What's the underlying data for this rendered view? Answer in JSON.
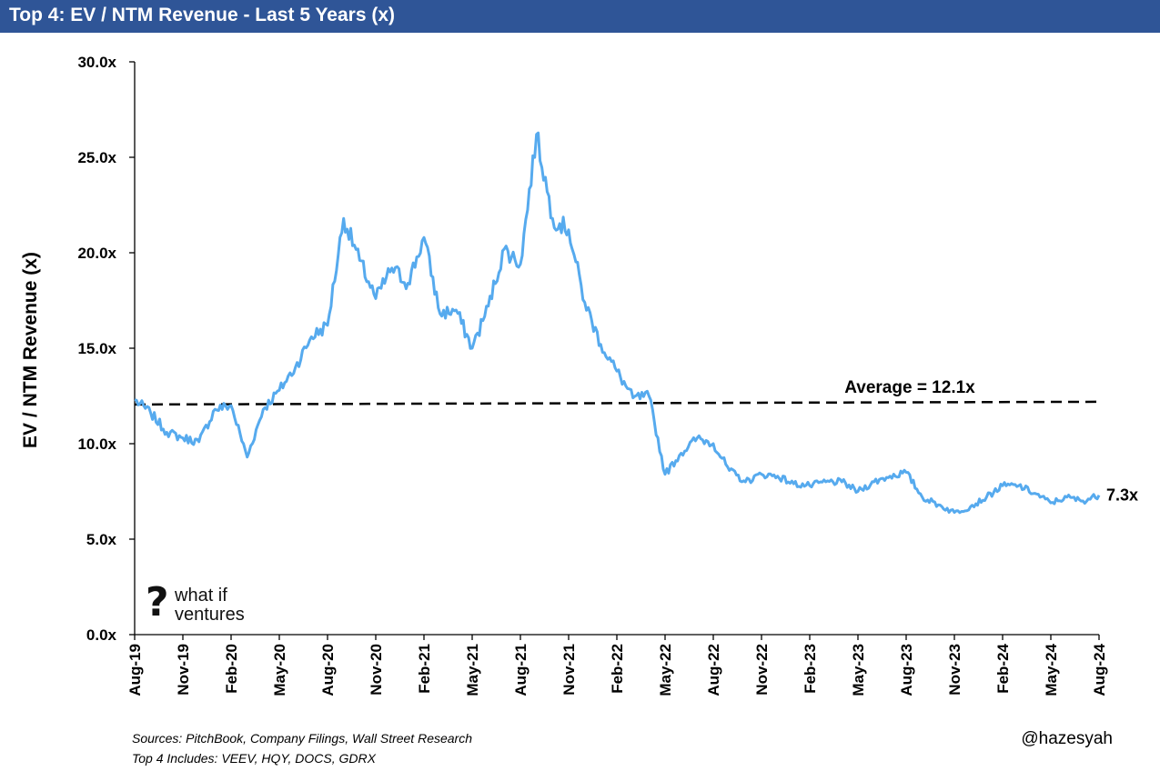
{
  "header": {
    "title": "Top 4: EV / NTM Revenue - Last 5 Years (x)"
  },
  "colors": {
    "header_bg": "#2f5597",
    "series": "#56aaee",
    "average_line": "#000000"
  },
  "chart_data": {
    "type": "line",
    "ylabel": "EV / NTM Revenue (x)",
    "ylim": [
      0,
      30
    ],
    "yticks": [
      "0.0x",
      "5.0x",
      "10.0x",
      "15.0x",
      "20.0x",
      "25.0x",
      "30.0x"
    ],
    "xticks": [
      "Aug-19",
      "Nov-19",
      "Feb-20",
      "May-20",
      "Aug-20",
      "Nov-20",
      "Feb-21",
      "May-21",
      "Aug-21",
      "Nov-21",
      "Feb-22",
      "May-22",
      "Aug-22",
      "Nov-22",
      "Feb-23",
      "May-23",
      "Aug-23",
      "Nov-23",
      "Feb-24",
      "May-24",
      "Aug-24"
    ],
    "xrange": [
      "Aug-19",
      "Aug-24"
    ],
    "series": [
      {
        "name": "",
        "points": [
          [
            "2019-08",
            12.3
          ],
          [
            "2019-09",
            11.6
          ],
          [
            "2019-10",
            10.6
          ],
          [
            "2019-11",
            10.3
          ],
          [
            "2019-12",
            10.1
          ],
          [
            "2020-01",
            11.8
          ],
          [
            "2020-02",
            12.0
          ],
          [
            "2020-03",
            9.3
          ],
          [
            "2020-04",
            11.8
          ],
          [
            "2020-05",
            12.8
          ],
          [
            "2020-06",
            14.0
          ],
          [
            "2020-07",
            15.6
          ],
          [
            "2020-08",
            16.2
          ],
          [
            "2020-09",
            21.8
          ],
          [
            "2020-10",
            19.6
          ],
          [
            "2020-11",
            17.6
          ],
          [
            "2020-12",
            19.2
          ],
          [
            "2021-01",
            18.4
          ],
          [
            "2021-02",
            20.8
          ],
          [
            "2021-03",
            16.8
          ],
          [
            "2021-04",
            17.0
          ],
          [
            "2021-05",
            15.0
          ],
          [
            "2021-06",
            17.2
          ],
          [
            "2021-07",
            20.2
          ],
          [
            "2021-08",
            19.4
          ],
          [
            "2021-09",
            26.2
          ],
          [
            "2021-10",
            21.8
          ],
          [
            "2021-11",
            21.2
          ],
          [
            "2021-12",
            17.4
          ],
          [
            "2022-01",
            15.2
          ],
          [
            "2022-02",
            13.8
          ],
          [
            "2022-03",
            12.4
          ],
          [
            "2022-04",
            12.5
          ],
          [
            "2022-05",
            8.4
          ],
          [
            "2022-06",
            9.5
          ],
          [
            "2022-07",
            10.3
          ],
          [
            "2022-08",
            10.0
          ],
          [
            "2022-09",
            8.6
          ],
          [
            "2022-10",
            8.0
          ],
          [
            "2022-11",
            8.4
          ],
          [
            "2022-12",
            8.3
          ],
          [
            "2023-01",
            7.9
          ],
          [
            "2023-02",
            7.8
          ],
          [
            "2023-03",
            8.0
          ],
          [
            "2023-04",
            8.0
          ],
          [
            "2023-05",
            7.5
          ],
          [
            "2023-06",
            8.0
          ],
          [
            "2023-07",
            8.3
          ],
          [
            "2023-08",
            8.5
          ],
          [
            "2023-09",
            7.2
          ],
          [
            "2023-10",
            6.8
          ],
          [
            "2023-11",
            6.4
          ],
          [
            "2023-12",
            6.7
          ],
          [
            "2024-01",
            7.2
          ],
          [
            "2024-02",
            7.8
          ],
          [
            "2024-03",
            7.8
          ],
          [
            "2024-04",
            7.4
          ],
          [
            "2024-05",
            6.9
          ],
          [
            "2024-06",
            7.2
          ],
          [
            "2024-07",
            7.0
          ],
          [
            "2024-08",
            7.3
          ]
        ]
      }
    ],
    "average": {
      "value": 12.1,
      "label": "Average = 12.1x"
    },
    "last_label": "7.3x",
    "grid": false
  },
  "footnotes": {
    "line1": "Sources: PitchBook, Company Filings, Wall Street Research",
    "line2": "Top 4 Includes: VEEV, HQY, DOCS, GDRX"
  },
  "handle": "@hazesyah",
  "logo": {
    "line1": "what if",
    "line2": "ventures"
  }
}
